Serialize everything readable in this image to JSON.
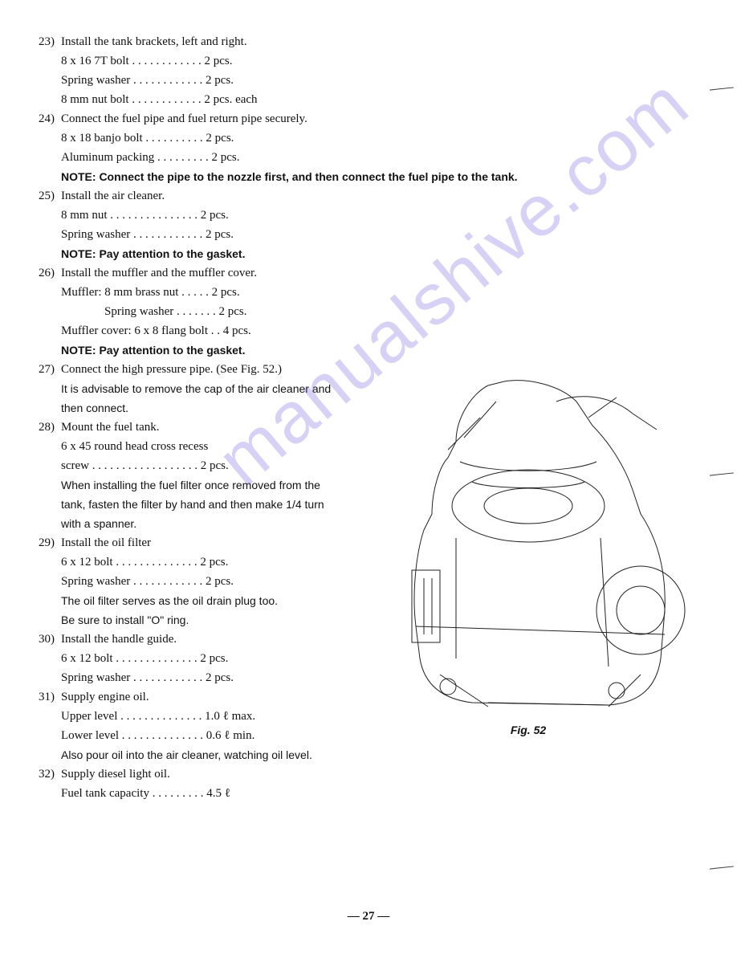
{
  "watermark": "manualshive.com",
  "page_number": "— 27 —",
  "figure": {
    "caption": "Fig. 52"
  },
  "steps": [
    {
      "num": "23)",
      "lines": [
        {
          "t": "Install the tank brackets, left and right."
        },
        {
          "t": "8 x 16  7T bolt . . . . . . . . . . . . 2 pcs."
        },
        {
          "t": "Spring washer  . . . . . . . . . . . . 2 pcs."
        },
        {
          "t": "8 mm nut bolt  . . . . . . . . . . . . 2 pcs. each"
        }
      ]
    },
    {
      "num": "24)",
      "lines": [
        {
          "t": "Connect the fuel pipe and fuel return pipe securely."
        },
        {
          "t": "8 x 18 banjo bolt  . . . . . . . . . . 2 pcs."
        },
        {
          "t": "Aluminum packing  . . . . . . . . . 2 pcs."
        },
        {
          "t": "NOTE:  Connect the pipe to the nozzle first, and then connect the fuel pipe to the tank.",
          "cls": "note"
        }
      ]
    },
    {
      "num": "25)",
      "lines": [
        {
          "t": "Install the air cleaner."
        },
        {
          "t": "8 mm nut  . . . . . . . . . . . . . . . 2 pcs."
        },
        {
          "t": "Spring washer  . . . . . . . . . . . . 2 pcs."
        },
        {
          "t": "NOTE:  Pay attention to the gasket.",
          "cls": "note"
        }
      ]
    },
    {
      "num": "26)",
      "lines": [
        {
          "t": "Install the muffler and the muffler cover."
        },
        {
          "t": "Muffler: 8 mm brass nut  . . . . . 2 pcs."
        },
        {
          "t": "Spring washer . . . . . . . 2 pcs.",
          "cls": "indent1"
        },
        {
          "t": "Muffler cover: 6 x 8 flang bolt . .  4 pcs."
        },
        {
          "t": "NOTE:  Pay attention to the gasket.",
          "cls": "note"
        }
      ]
    },
    {
      "num": "27)",
      "lines": [
        {
          "t": "Connect the high pressure pipe. (See Fig. 52.)"
        },
        {
          "t": "It is advisable to remove the cap of the air cleaner and",
          "cls": "sans"
        },
        {
          "t": "then connect.",
          "cls": "sans"
        }
      ]
    },
    {
      "num": "28)",
      "lines": [
        {
          "t": "Mount the fuel tank."
        },
        {
          "t": "6 x 45 round head cross recess"
        },
        {
          "t": "screw . . . . . . . . . . . . . . . . . . 2 pcs."
        },
        {
          "t": "When installing the fuel filter once removed from the",
          "cls": "sans"
        },
        {
          "t": "tank, fasten the filter by hand and then make 1/4 turn",
          "cls": "sans"
        },
        {
          "t": "with a spanner.",
          "cls": "sans"
        }
      ]
    },
    {
      "num": "29)",
      "lines": [
        {
          "t": "Install the oil filter"
        },
        {
          "t": "6 x 12 bolt  . . . . . . . . . . . . . . 2 pcs."
        },
        {
          "t": "Spring washer  . . . . . . . . . . . . 2 pcs."
        },
        {
          "t": "The oil filter serves as the oil drain plug too.",
          "cls": "sans"
        },
        {
          "t": "Be sure to install \"O\" ring.",
          "cls": "sans"
        }
      ]
    },
    {
      "num": "30)",
      "lines": [
        {
          "t": "Install the handle guide."
        },
        {
          "t": "6 x 12 bolt  . . . . . . . . . . . . . . 2 pcs."
        },
        {
          "t": "Spring washer  . . . . . . . . . . . . 2 pcs."
        }
      ]
    },
    {
      "num": "31)",
      "lines": [
        {
          "t": "Supply engine oil."
        },
        {
          "t": "Upper level  . . . . . . . . . . . . . . 1.0 ℓ max."
        },
        {
          "t": "Lower level  . . . . . . . . . . . . . . 0.6 ℓ min."
        },
        {
          "t": "Also pour oil into the air cleaner, watching oil level.",
          "cls": "sans"
        }
      ]
    },
    {
      "num": "32)",
      "lines": [
        {
          "t": "Supply diesel light oil."
        },
        {
          "t": "Fuel tank capacity  . . . . . . . . . 4.5 ℓ"
        }
      ]
    }
  ]
}
